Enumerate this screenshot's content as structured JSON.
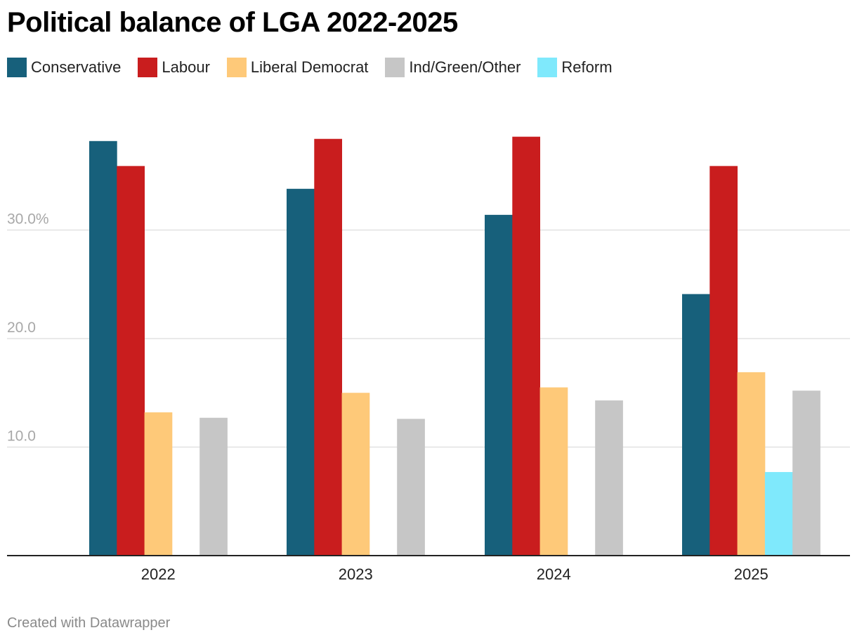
{
  "title": "Political balance of LGA 2022-2025",
  "credit": "Created with Datawrapper",
  "chart_data": {
    "type": "bar",
    "categories": [
      "2022",
      "2023",
      "2024",
      "2025"
    ],
    "series": [
      {
        "name": "Conservative",
        "color": "#17607b",
        "values": [
          38.2,
          33.8,
          31.4,
          24.1
        ]
      },
      {
        "name": "Labour",
        "color": "#c91d1e",
        "values": [
          35.9,
          38.4,
          38.6,
          35.9
        ]
      },
      {
        "name": "Liberal Democrat",
        "color": "#fec979",
        "values": [
          13.2,
          15.0,
          15.5,
          16.9
        ]
      },
      {
        "name": "Reform",
        "color": "#7fe9fc",
        "values": [
          null,
          null,
          null,
          7.7
        ]
      },
      {
        "name": "Ind/Green/Other",
        "color": "#c6c6c6",
        "values": [
          12.7,
          12.6,
          14.3,
          15.2
        ]
      }
    ],
    "y_ticks": [
      {
        "value": 10,
        "label": "10.0"
      },
      {
        "value": 20,
        "label": "20.0"
      },
      {
        "value": 30,
        "label": "30.0%"
      }
    ],
    "ylim": [
      0,
      40
    ],
    "grid": true,
    "legend_position": "top-left"
  },
  "legend": [
    {
      "label": "Conservative",
      "color": "#17607b"
    },
    {
      "label": "Labour",
      "color": "#c91d1e"
    },
    {
      "label": "Liberal Democrat",
      "color": "#fec979"
    },
    {
      "label": "Ind/Green/Other",
      "color": "#c6c6c6"
    },
    {
      "label": "Reform",
      "color": "#7fe9fc"
    }
  ]
}
